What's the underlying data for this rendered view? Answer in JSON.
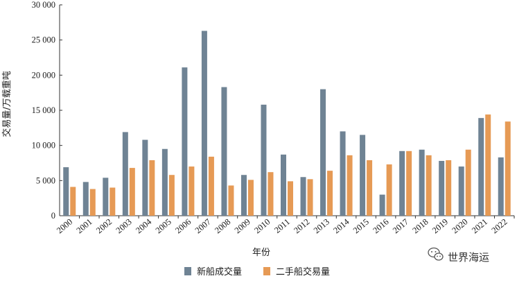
{
  "chart_data": {
    "type": "bar",
    "title": "",
    "xlabel": "年份",
    "ylabel": "交易量/万载重吨",
    "categories": [
      "2000",
      "2001",
      "2002",
      "2003",
      "2004",
      "2005",
      "2006",
      "2007",
      "2008",
      "2009",
      "2010",
      "2011",
      "2012",
      "2013",
      "2014",
      "2015",
      "2016",
      "2017",
      "2018",
      "2019",
      "2020",
      "2021",
      "2022"
    ],
    "series": [
      {
        "name": "新船成交量",
        "color": "#6f8394",
        "values": [
          6900,
          4800,
          5400,
          11900,
          10800,
          9500,
          21100,
          26300,
          18300,
          5800,
          15800,
          8700,
          5500,
          18000,
          12000,
          11500,
          3000,
          9200,
          9400,
          7800,
          7000,
          13900,
          8300
        ]
      },
      {
        "name": "二手船交易量",
        "color": "#e69a55",
        "values": [
          4100,
          3800,
          4000,
          6800,
          7900,
          5800,
          7000,
          8400,
          4300,
          5100,
          6200,
          4900,
          5200,
          6400,
          8600,
          7900,
          7300,
          9200,
          8600,
          7900,
          9400,
          14400,
          13400
        ]
      }
    ],
    "ylim": [
      0,
      30000
    ],
    "yticks": [
      0,
      5000,
      10000,
      15000,
      20000,
      25000,
      30000
    ],
    "ytick_labels": [
      "0",
      "5 000",
      "10 000",
      "15 000",
      "20 000",
      "25 000",
      "30 000"
    ],
    "grid": false,
    "legend_position": "bottom-center"
  },
  "watermark": {
    "text": "世界海运",
    "icon": "wechat-icon"
  }
}
